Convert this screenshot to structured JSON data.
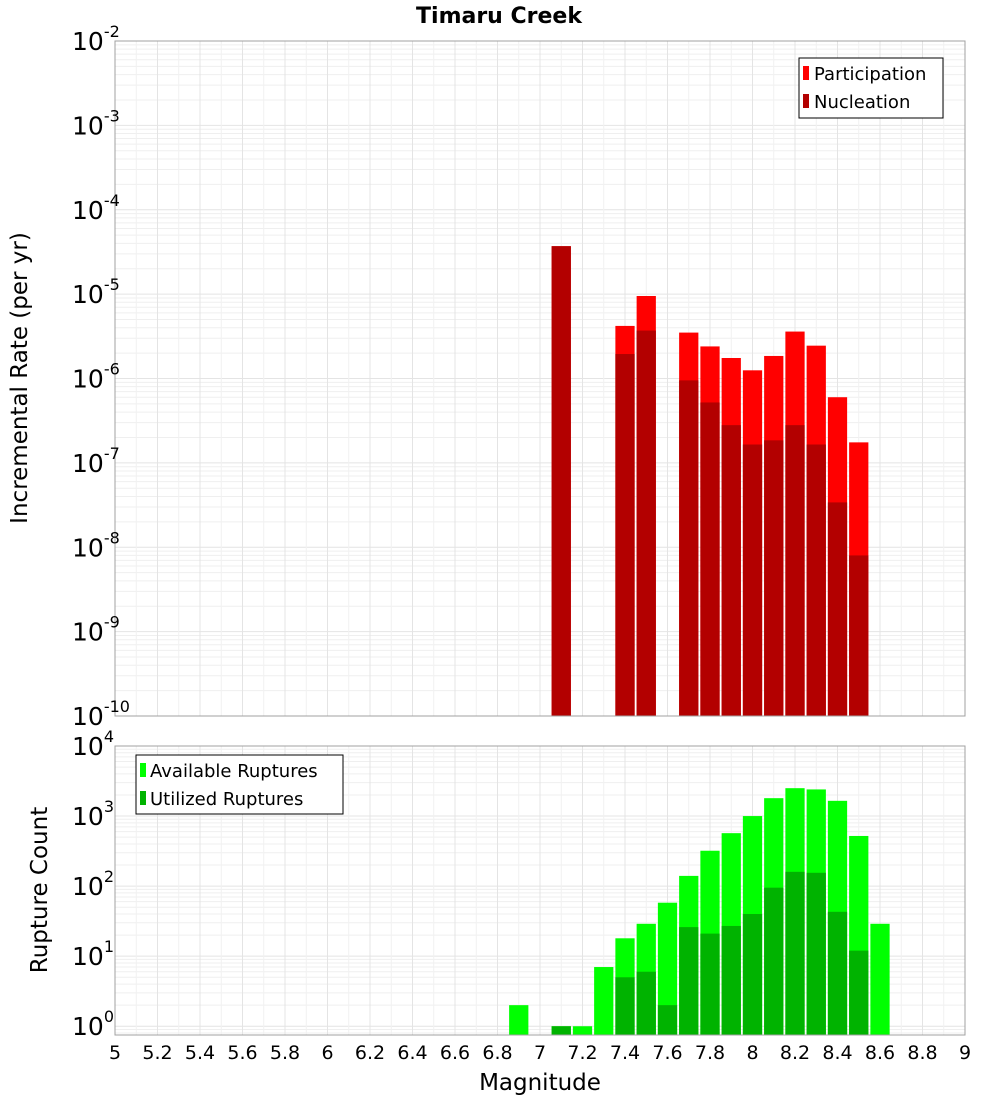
{
  "chart_data": [
    {
      "type": "bar",
      "title": "Timaru Creek",
      "xlabel": "",
      "ylabel": "Incremental Rate (per yr)",
      "yscale": "log",
      "xlim": [
        5,
        9
      ],
      "ylim": [
        1e-10,
        0.01
      ],
      "ytick_exponents": [
        "-10",
        "-9",
        "-8",
        "-7",
        "-6",
        "-5",
        "-4",
        "-3",
        "-2"
      ],
      "grid": true,
      "legend_position": "top-right",
      "bar_width": 0.1,
      "x": [
        7.1,
        7.4,
        7.5,
        7.7,
        7.8,
        7.9,
        8.0,
        8.1,
        8.2,
        8.3,
        8.4,
        8.5
      ],
      "series": [
        {
          "name": "Participation",
          "color": "#ff0000",
          "values": [
            3.7e-05,
            4.2e-06,
            9.5e-06,
            3.5e-06,
            2.4e-06,
            1.75e-06,
            1.25e-06,
            1.85e-06,
            3.6e-06,
            2.45e-06,
            6e-07,
            1.75e-07
          ]
        },
        {
          "name": "Nucleation",
          "color": "#b30000",
          "values": [
            3.7e-05,
            1.95e-06,
            3.7e-06,
            9.5e-07,
            5.2e-07,
            2.8e-07,
            1.65e-07,
            1.85e-07,
            2.8e-07,
            1.65e-07,
            3.4e-08,
            8e-09
          ]
        }
      ]
    },
    {
      "type": "bar",
      "title": "",
      "xlabel": "Magnitude",
      "ylabel": "Rupture Count",
      "yscale": "log",
      "xlim": [
        5,
        9
      ],
      "ylim": [
        0.75,
        10000
      ],
      "ytick_exponents": [
        "0",
        "1",
        "2",
        "3",
        "4"
      ],
      "xticks": [
        "5",
        "5.2",
        "5.4",
        "5.6",
        "5.8",
        "6",
        "6.2",
        "6.4",
        "6.6",
        "6.8",
        "7",
        "7.2",
        "7.4",
        "7.6",
        "7.8",
        "8",
        "8.2",
        "8.4",
        "8.6",
        "8.8",
        "9"
      ],
      "grid": true,
      "legend_position": "top-left",
      "bar_width": 0.1,
      "x": [
        6.9,
        7.1,
        7.2,
        7.3,
        7.4,
        7.5,
        7.6,
        7.7,
        7.8,
        7.9,
        8.0,
        8.1,
        8.2,
        8.3,
        8.4,
        8.5,
        8.6
      ],
      "series": [
        {
          "name": "Available Ruptures",
          "color": "#00ff00",
          "values": [
            2,
            1,
            1,
            7,
            18,
            29,
            58,
            140,
            320,
            570,
            1000,
            1800,
            2500,
            2400,
            1650,
            520,
            29
          ]
        },
        {
          "name": "Utilized Ruptures",
          "color": "#00b300",
          "values": [
            0,
            1,
            0,
            0,
            5,
            6,
            2,
            26,
            21,
            27,
            40,
            95,
            160,
            155,
            43,
            12,
            0
          ]
        }
      ]
    }
  ]
}
